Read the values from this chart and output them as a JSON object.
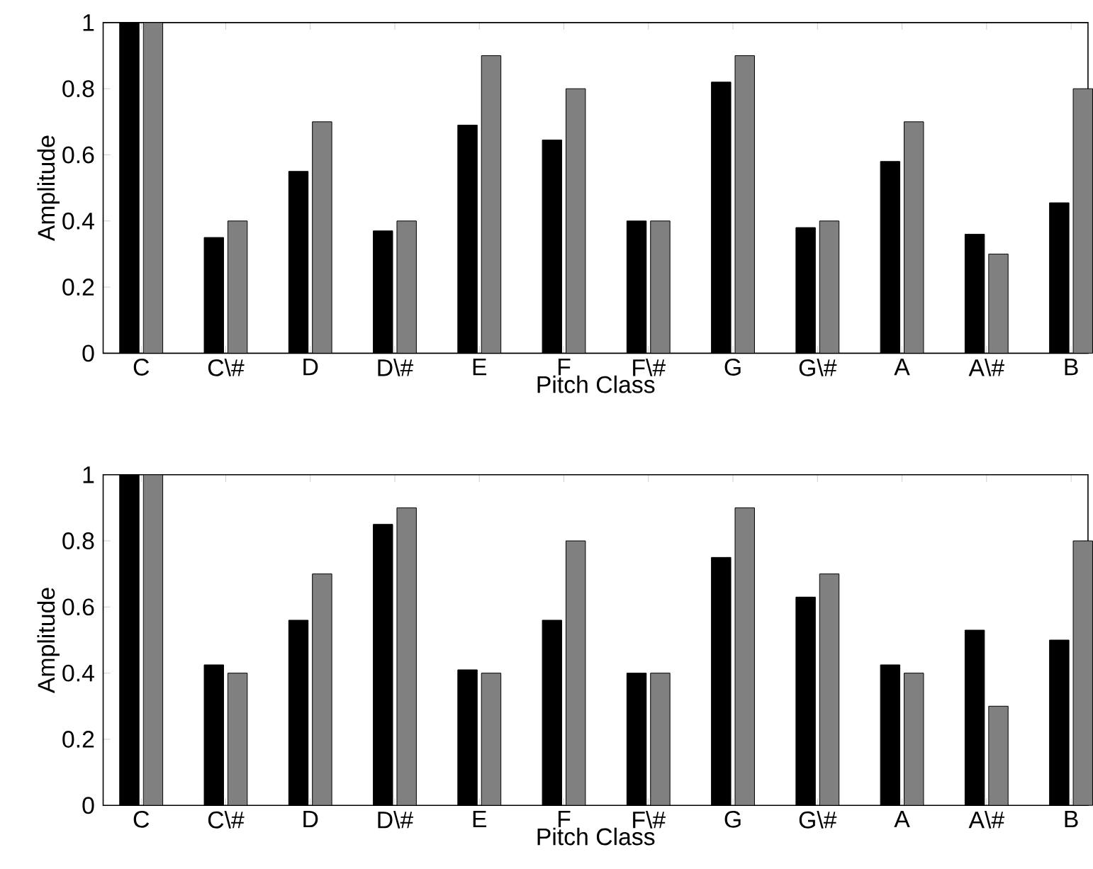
{
  "chart_data": [
    {
      "type": "bar",
      "xlabel": "Pitch Class",
      "ylabel": "Amplitude",
      "categories": [
        "C",
        "C\\#",
        "D",
        "D\\#",
        "E",
        "F",
        "F\\#",
        "G",
        "G\\#",
        "A",
        "A\\#",
        "B"
      ],
      "ylim": [
        0,
        1
      ],
      "yticks": [
        0,
        0.2,
        0.4,
        0.6,
        0.8,
        1
      ],
      "series": [
        {
          "color": "#000000",
          "values": [
            1.0,
            0.35,
            0.55,
            0.37,
            0.69,
            0.645,
            0.4,
            0.82,
            0.38,
            0.58,
            0.36,
            0.455
          ]
        },
        {
          "color": "#808080",
          "values": [
            1.0,
            0.4,
            0.7,
            0.4,
            0.9,
            0.8,
            0.4,
            0.9,
            0.4,
            0.7,
            0.3,
            0.8
          ]
        }
      ]
    },
    {
      "type": "bar",
      "xlabel": "Pitch Class",
      "ylabel": "Amplitude",
      "categories": [
        "C",
        "C\\#",
        "D",
        "D\\#",
        "E",
        "F",
        "F\\#",
        "G",
        "G\\#",
        "A",
        "A\\#",
        "B"
      ],
      "ylim": [
        0,
        1
      ],
      "yticks": [
        0,
        0.2,
        0.4,
        0.6,
        0.8,
        1
      ],
      "series": [
        {
          "color": "#000000",
          "values": [
            1.0,
            0.425,
            0.56,
            0.85,
            0.41,
            0.56,
            0.4,
            0.75,
            0.63,
            0.425,
            0.53,
            0.5
          ]
        },
        {
          "color": "#808080",
          "values": [
            1.0,
            0.4,
            0.7,
            0.9,
            0.4,
            0.8,
            0.4,
            0.9,
            0.7,
            0.4,
            0.3,
            0.8
          ]
        }
      ]
    }
  ]
}
